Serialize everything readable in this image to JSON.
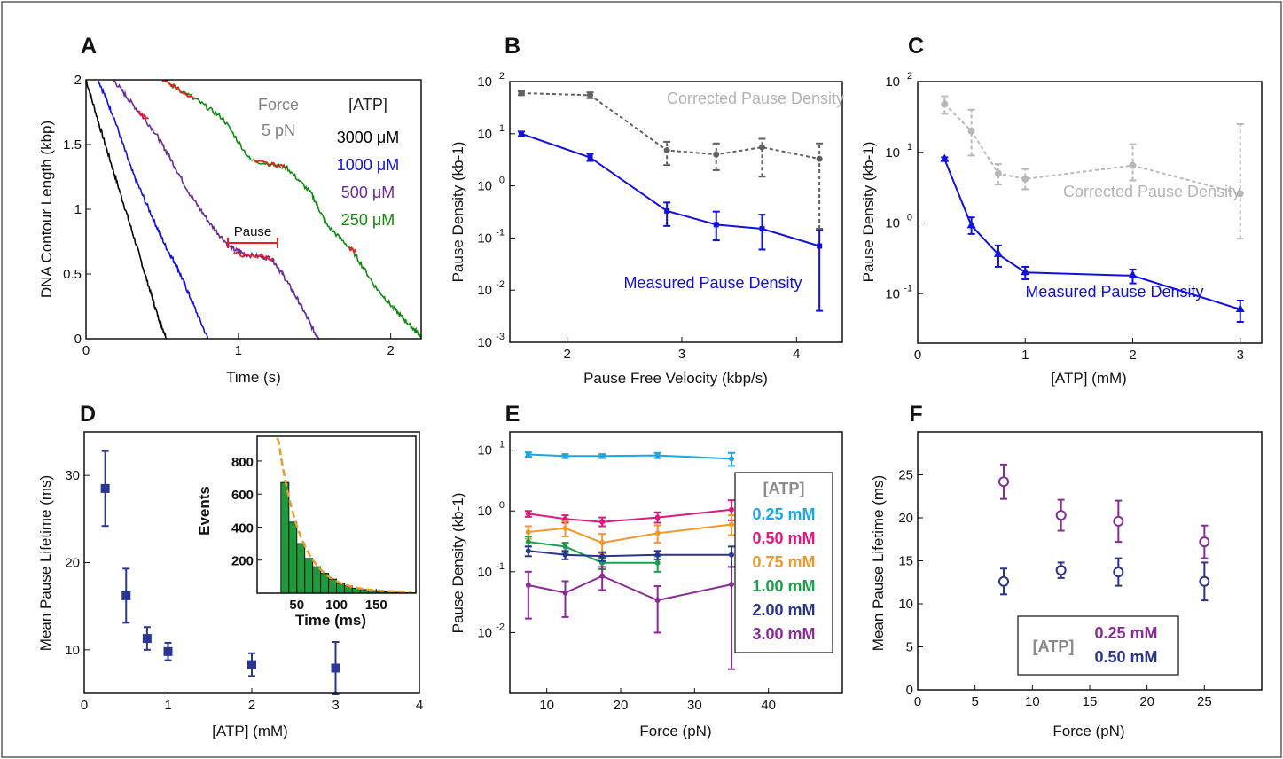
{
  "chart_data": [
    {
      "panel": "A",
      "type": "line",
      "xlabel": "Time (s)",
      "ylabel": "DNA Contour Length (kbp)",
      "xlim": [
        0,
        2.2
      ],
      "ylim": [
        0,
        2
      ],
      "xticks": [
        "0",
        "1",
        "2"
      ],
      "yticks": [
        "0",
        "0.5",
        "1",
        "1.5",
        "2"
      ],
      "force_title": "Force",
      "force_value": "5 pN",
      "legend_title": "[ATP]",
      "pause_label": "Pause",
      "series": [
        {
          "name": "3000 μM",
          "color": "#000000",
          "points": [
            [
              0.0,
              2.0
            ],
            [
              0.1,
              1.6
            ],
            [
              0.2,
              1.22
            ],
            [
              0.3,
              0.84
            ],
            [
              0.4,
              0.45
            ],
            [
              0.47,
              0.18
            ],
            [
              0.53,
              0.0
            ]
          ]
        },
        {
          "name": "1000 μM",
          "color": "#1010e0",
          "points": [
            [
              0.08,
              2.0
            ],
            [
              0.18,
              1.72
            ],
            [
              0.3,
              1.3
            ],
            [
              0.42,
              0.98
            ],
            [
              0.52,
              0.72
            ],
            [
              0.6,
              0.55
            ],
            [
              0.68,
              0.33
            ],
            [
              0.8,
              0.0
            ]
          ]
        },
        {
          "name": "500 μM",
          "color": "#6a2a95",
          "points": [
            [
              0.18,
              2.0
            ],
            [
              0.3,
              1.82
            ],
            [
              0.45,
              1.6
            ],
            [
              0.55,
              1.4
            ],
            [
              0.68,
              1.12
            ],
            [
              0.82,
              0.88
            ],
            [
              0.95,
              0.7
            ],
            [
              1.05,
              0.65
            ],
            [
              1.22,
              0.62
            ],
            [
              1.3,
              0.48
            ],
            [
              1.4,
              0.28
            ],
            [
              1.5,
              0.05
            ],
            [
              1.53,
              0.0
            ]
          ]
        },
        {
          "name": "250 μM",
          "color": "#108a10",
          "points": [
            [
              0.5,
              2.0
            ],
            [
              0.72,
              1.85
            ],
            [
              0.9,
              1.7
            ],
            [
              1.08,
              1.38
            ],
            [
              1.32,
              1.32
            ],
            [
              1.48,
              1.12
            ],
            [
              1.58,
              0.88
            ],
            [
              1.75,
              0.68
            ],
            [
              1.9,
              0.4
            ],
            [
              2.03,
              0.22
            ],
            [
              2.13,
              0.1
            ],
            [
              2.2,
              0.02
            ]
          ]
        }
      ]
    },
    {
      "panel": "B",
      "type": "line",
      "xlabel": "Pause Free Velocity (kbp/s)",
      "ylabel": "Pause Density (kb-1)",
      "yscale": "log",
      "xlim": [
        1.5,
        4.4
      ],
      "ylim": [
        0.001,
        100
      ],
      "xticks": [
        "2",
        "3",
        "4"
      ],
      "series": [
        {
          "name": "Corrected Pause Density",
          "color": "#606060",
          "dashed": true,
          "x": [
            1.6,
            2.2,
            2.87,
            3.3,
            3.7,
            4.2
          ],
          "y": [
            60,
            55,
            4.8,
            4.0,
            5.5,
            3.3
          ],
          "yerr_low": [
            55,
            48,
            2.5,
            2.0,
            1.5,
            0.15
          ],
          "yerr_high": [
            65,
            62,
            7.0,
            6.5,
            8.0,
            6.5
          ]
        },
        {
          "name": "Measured Pause Density",
          "color": "#1010e0",
          "x": [
            1.6,
            2.2,
            2.87,
            3.3,
            3.7,
            4.2
          ],
          "y": [
            10,
            3.5,
            0.33,
            0.18,
            0.15,
            0.07
          ],
          "yerr_low": [
            9,
            3.0,
            0.17,
            0.09,
            0.06,
            0.004
          ],
          "yerr_high": [
            11,
            4.1,
            0.48,
            0.32,
            0.28,
            0.14
          ]
        }
      ]
    },
    {
      "panel": "C",
      "type": "line",
      "xlabel": "[ATP] (mM)",
      "ylabel": "Pause Density (kb-1)",
      "yscale": "log",
      "xlim": [
        0,
        3.2
      ],
      "ylim": [
        0.02,
        100
      ],
      "xticks": [
        "0",
        "1",
        "2",
        "3"
      ],
      "series": [
        {
          "name": "Corrected Pause Density",
          "color": "#b8b8b8",
          "dashed": true,
          "x": [
            0.25,
            0.5,
            0.75,
            1.0,
            2.0,
            3.0
          ],
          "y": [
            48,
            20,
            5.0,
            4.2,
            6.5,
            2.6
          ],
          "yerr_low": [
            35,
            9,
            3.5,
            3.0,
            4.0,
            0.6
          ],
          "yerr_high": [
            62,
            40,
            6.8,
            5.8,
            13,
            25
          ]
        },
        {
          "name": "Measured Pause Density",
          "color": "#1010e0",
          "x": [
            0.25,
            0.5,
            0.75,
            1.0,
            2.0,
            3.0
          ],
          "y": [
            8.0,
            0.92,
            0.36,
            0.2,
            0.18,
            0.06
          ],
          "yerr_low": [
            7.5,
            0.7,
            0.24,
            0.16,
            0.14,
            0.04
          ],
          "yerr_high": [
            8.5,
            1.2,
            0.48,
            0.24,
            0.22,
            0.08
          ]
        }
      ]
    },
    {
      "panel": "D",
      "type": "scatter",
      "xlabel": "[ATP] (mM)",
      "ylabel": "Mean Pause Lifetime (ms)",
      "xlim": [
        0,
        4
      ],
      "ylim": [
        5,
        35
      ],
      "xticks": [
        "0",
        "1",
        "2",
        "3",
        "4"
      ],
      "yticks": [
        "10",
        "20",
        "30"
      ],
      "series": [
        {
          "name": "",
          "color": "#2b3596",
          "x": [
            0.25,
            0.5,
            0.75,
            1.0,
            2.0,
            3.0
          ],
          "y": [
            28.5,
            16.2,
            11.3,
            9.8,
            8.3,
            7.9
          ],
          "err": [
            4.3,
            3.1,
            1.3,
            1.0,
            1.3,
            3.0
          ]
        }
      ],
      "inset": {
        "type": "bar",
        "xlabel": "Time (ms)",
        "ylabel": "Events",
        "xlim": [
          0,
          200
        ],
        "ylim": [
          0,
          950
        ],
        "xticks": [
          "50",
          "100",
          "150"
        ],
        "yticks": [
          "200",
          "400",
          "600",
          "800"
        ],
        "bar_color": "#1f9a3a",
        "fit_color": "#f0982c",
        "bin_width": 10,
        "bin_starts": [
          30,
          40,
          50,
          60,
          70,
          80,
          90,
          100,
          110,
          120,
          130,
          140,
          150,
          160,
          170,
          180,
          190
        ],
        "counts": [
          670,
          430,
          300,
          210,
          160,
          120,
          85,
          60,
          45,
          30,
          22,
          15,
          10,
          8,
          5,
          3,
          2
        ]
      }
    },
    {
      "panel": "E",
      "type": "line",
      "xlabel": "Force (pN)",
      "ylabel": "Pause Density (kb-1)",
      "yscale": "log",
      "xlim": [
        5,
        50
      ],
      "ylim": [
        0.001,
        20
      ],
      "xticks": [
        "10",
        "20",
        "30",
        "40"
      ],
      "legend_title": "[ATP]",
      "series": [
        {
          "name": "0.25 mM",
          "color": "#18a8e8",
          "x": [
            7.5,
            12.5,
            17.5,
            25,
            35
          ],
          "y": [
            8.5,
            8.0,
            8.0,
            8.2,
            7.2
          ],
          "lo": [
            7.8,
            7.4,
            7.4,
            7.4,
            5.5
          ],
          "hi": [
            9.2,
            8.6,
            8.6,
            9.0,
            9.0
          ]
        },
        {
          "name": "0.50 mM",
          "color": "#e0187e",
          "x": [
            7.5,
            12.5,
            17.5,
            25,
            35
          ],
          "y": [
            0.9,
            0.74,
            0.66,
            0.78,
            1.05
          ],
          "lo": [
            0.8,
            0.64,
            0.56,
            0.64,
            0.7
          ],
          "hi": [
            1.0,
            0.85,
            0.78,
            0.95,
            1.5
          ]
        },
        {
          "name": "0.75 mM",
          "color": "#f0982c",
          "x": [
            7.5,
            12.5,
            17.5,
            25,
            35
          ],
          "y": [
            0.45,
            0.52,
            0.3,
            0.43,
            0.6
          ],
          "lo": [
            0.35,
            0.38,
            0.2,
            0.3,
            0.4
          ],
          "hi": [
            0.56,
            0.68,
            0.42,
            0.58,
            0.85
          ]
        },
        {
          "name": "1.00 mM",
          "color": "#1aa04a",
          "x": [
            7.5,
            12.5,
            17.5,
            25
          ],
          "y": [
            0.31,
            0.26,
            0.14,
            0.14
          ],
          "lo": [
            0.26,
            0.2,
            0.11,
            0.1
          ],
          "hi": [
            0.38,
            0.3,
            0.17,
            0.18
          ]
        },
        {
          "name": "2.00 mM",
          "color": "#28348e",
          "x": [
            7.5,
            12.5,
            17.5,
            25,
            35
          ],
          "y": [
            0.22,
            0.19,
            0.18,
            0.19,
            0.19
          ],
          "lo": [
            0.18,
            0.16,
            0.15,
            0.16,
            0.12
          ],
          "hi": [
            0.26,
            0.22,
            0.21,
            0.22,
            0.26
          ]
        },
        {
          "name": "3.00 mM",
          "color": "#8a2a98",
          "x": [
            7.5,
            12.5,
            17.5,
            25,
            35
          ],
          "y": [
            0.06,
            0.045,
            0.085,
            0.034,
            0.062
          ],
          "lo": [
            0.017,
            0.018,
            0.05,
            0.01,
            0.0025
          ],
          "hi": [
            0.1,
            0.07,
            0.12,
            0.058,
            0.12
          ]
        }
      ]
    },
    {
      "panel": "F",
      "type": "scatter",
      "xlabel": "Force (pN)",
      "ylabel": "Mean Pause Lifetime (ms)",
      "xlim": [
        0,
        30
      ],
      "ylim": [
        0,
        30
      ],
      "xticks": [
        "0",
        "5",
        "10",
        "15",
        "20",
        "25"
      ],
      "yticks": [
        "0",
        "5",
        "10",
        "15",
        "20",
        "25"
      ],
      "legend_title": "[ATP]",
      "series": [
        {
          "name": "0.25 mM",
          "color": "#8a2a98",
          "x": [
            7.5,
            12.5,
            17.5,
            25
          ],
          "y": [
            24.2,
            20.3,
            19.6,
            17.2
          ],
          "err": [
            2.0,
            1.8,
            2.4,
            1.9
          ]
        },
        {
          "name": "0.50 mM",
          "color": "#28348e",
          "x": [
            7.5,
            12.5,
            17.5,
            25
          ],
          "y": [
            12.6,
            13.9,
            13.7,
            12.6
          ],
          "err": [
            1.5,
            0.9,
            1.6,
            2.2
          ]
        }
      ]
    }
  ]
}
